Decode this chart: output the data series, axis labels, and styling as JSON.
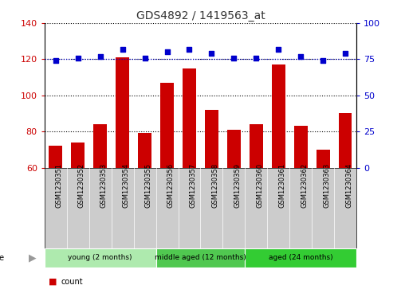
{
  "title": "GDS4892 / 1419563_at",
  "samples": [
    "GSM1230351",
    "GSM1230352",
    "GSM1230353",
    "GSM1230354",
    "GSM1230355",
    "GSM1230356",
    "GSM1230357",
    "GSM1230358",
    "GSM1230359",
    "GSM1230360",
    "GSM1230361",
    "GSM1230362",
    "GSM1230363",
    "GSM1230364"
  ],
  "counts": [
    72,
    74,
    84,
    121,
    79,
    107,
    115,
    92,
    81,
    84,
    117,
    83,
    70,
    90
  ],
  "percentiles": [
    74,
    76,
    77,
    82,
    76,
    80,
    82,
    79,
    76,
    76,
    82,
    77,
    74,
    79
  ],
  "ylim_left": [
    60,
    140
  ],
  "ylim_right": [
    0,
    100
  ],
  "yticks_left": [
    60,
    80,
    100,
    120,
    140
  ],
  "yticks_right": [
    0,
    25,
    50,
    75,
    100
  ],
  "groups": [
    {
      "label": "young (2 months)",
      "start": 0,
      "end": 5,
      "color": "#AEEAAE"
    },
    {
      "label": "middle aged (12 months)",
      "start": 5,
      "end": 9,
      "color": "#50C850"
    },
    {
      "label": "aged (24 months)",
      "start": 9,
      "end": 14,
      "color": "#33CC33"
    }
  ],
  "bar_color": "#CC0000",
  "dot_color": "#0000CC",
  "dotted_line_color": "#0000CC",
  "tick_bg_color": "#CCCCCC",
  "title_color": "#333333",
  "left_axis_color": "#CC0000",
  "right_axis_color": "#0000CC",
  "age_arrow_color": "#999999",
  "pct_line_value": 75
}
